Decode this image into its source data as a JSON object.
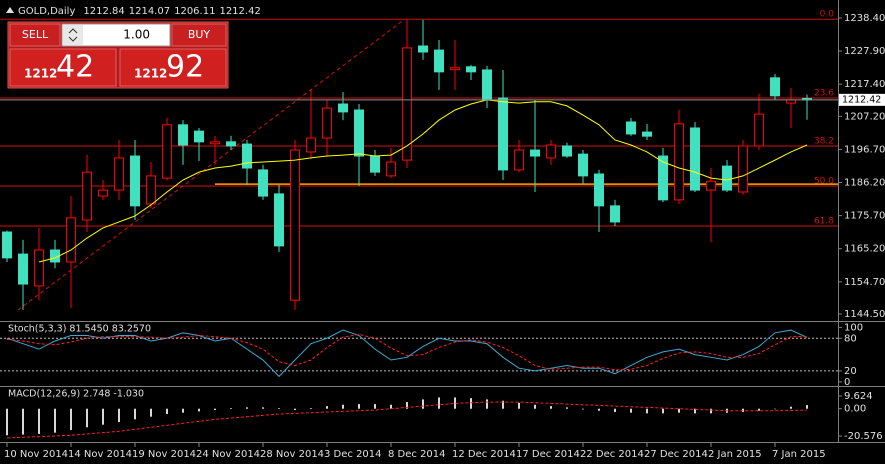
{
  "header": {
    "symbol": "GOLD,Daily"
  },
  "trade_panel": {
    "sell": "SELL",
    "buy": "BUY",
    "lots": "1.00",
    "bid_big": "1212",
    "bid_small": "42",
    "ask_big": "1212",
    "ask_small": "92"
  },
  "chart_data": [
    {
      "type": "candlestick",
      "categories": [
        "10 Nov 2014",
        null,
        null,
        null,
        "14 Nov 2014",
        null,
        null,
        null,
        "19 Nov 2014",
        null,
        null,
        null,
        "24 Nov 2014",
        null,
        null,
        null,
        "28 Nov 2014",
        null,
        null,
        null,
        "3 Dec 2014",
        null,
        null,
        null,
        "8 Dec 2014",
        null,
        null,
        null,
        "12 Dec 2014",
        null,
        null,
        null,
        "17 Dec 2014",
        null,
        null,
        null,
        "22 Dec 2014",
        null,
        null,
        null,
        "27 Dec 2014",
        null,
        null,
        null,
        "2 Jan 2015",
        null,
        null,
        null,
        "7 Jan 2015",
        null,
        null
      ],
      "open": [
        1170.5,
        1163.5,
        1153.4,
        1164.8,
        1161,
        1174.3,
        1181.9,
        1183.8,
        1194.6,
        1179.4,
        1187.6,
        1204.5,
        1202.5,
        1198.5,
        1199.1,
        1198.4,
        1190.2,
        1182.6,
        1148.9,
        1195.9,
        1200.3,
        1211.1,
        1209.2,
        1194.6,
        1188.3,
        1193.3,
        1229.5,
        1228.2,
        1222,
        1222.9,
        1221.9,
        1213,
        1190.2,
        1196.5,
        1194,
        1197.8,
        1195.2,
        1188.9,
        1178.8,
        1205.4,
        1202.2,
        1194.6,
        1180.7,
        1203.5,
        1183.8,
        1191.4,
        1183.2,
        1197.8,
        1219.4,
        1211.4,
        1212.84
      ],
      "high": [
        1171,
        1168,
        1171.8,
        1168,
        1181.9,
        1195,
        1187,
        1199.7,
        1199.7,
        1192.7,
        1206.7,
        1206,
        1203.5,
        1201,
        1201,
        1199.7,
        1191.8,
        1185.4,
        1199.7,
        1215.6,
        1212.4,
        1214.9,
        1211.1,
        1196.5,
        1197.2,
        1237.8,
        1237.8,
        1231.4,
        1231.4,
        1223.5,
        1223.2,
        1221.9,
        1199.7,
        1212.4,
        1199.7,
        1198.8,
        1196.5,
        1190.2,
        1180.7,
        1206.7,
        1204.8,
        1197.2,
        1209.2,
        1205.4,
        1190.8,
        1193.3,
        1199.7,
        1214.3,
        1220.6,
        1216.2,
        1214.07
      ],
      "low": [
        1161,
        1145.8,
        1148.9,
        1159,
        1146.4,
        1170.5,
        1180.7,
        1180.7,
        1174.3,
        1178,
        1186.9,
        1191.8,
        1193,
        1191.8,
        1196.5,
        1185.4,
        1180.7,
        1164.2,
        1145.8,
        1194,
        1194.6,
        1206,
        1185.1,
        1188.3,
        1187.6,
        1190.8,
        1225.1,
        1215.6,
        1215.6,
        1218.7,
        1209.8,
        1187,
        1189.5,
        1183.2,
        1191.8,
        1194,
        1185.7,
        1170.5,
        1172.4,
        1201,
        1199.7,
        1180,
        1179.4,
        1183.2,
        1167.3,
        1183.2,
        1182.3,
        1196.5,
        1212.4,
        1203.5,
        1206.11
      ],
      "close": [
        1162.3,
        1154,
        1164.8,
        1161,
        1175,
        1189.5,
        1183.8,
        1194,
        1178.8,
        1188.3,
        1204.5,
        1198.1,
        1199.1,
        1199.1,
        1197.8,
        1190.8,
        1181.9,
        1166.1,
        1196.5,
        1200.3,
        1209.8,
        1208.6,
        1194.6,
        1189.5,
        1192.7,
        1228.9,
        1227.6,
        1221.3,
        1222.6,
        1221.3,
        1212.4,
        1190.2,
        1196.5,
        1194.6,
        1198.1,
        1194.6,
        1188.3,
        1178.8,
        1173.7,
        1201.6,
        1200.9,
        1180.7,
        1204.8,
        1183.8,
        1186.6,
        1183.8,
        1197.8,
        1207.9,
        1213.7,
        1212.4,
        1212.42
      ],
      "bull_color": "#ff0000",
      "bear_color": "#40e0c0",
      "overlay": {
        "color": "#ffff00",
        "values": [
          null,
          null,
          1161.0,
          1162.3,
          1164.8,
          1168.6,
          1171.8,
          1173.7,
          1175.6,
          1179.1,
          1183.2,
          1187.0,
          1189.5,
          1190.8,
          1191.4,
          1192.4,
          1192.7,
          1193.0,
          1193.3,
          1194.0,
          1194.6,
          1194.9,
          1195.3,
          1194.6,
          1194.9,
          1197.8,
          1201.6,
          1206.0,
          1209.2,
          1211.1,
          1212.4,
          1211.8,
          1211.4,
          1211.8,
          1211.8,
          1210.5,
          1207.6,
          1204.5,
          1199.7,
          1198.1,
          1195.9,
          1192.7,
          1190.8,
          1189.5,
          1187.6,
          1187.0,
          1188.3,
          1190.8,
          1193.3,
          1195.9,
          1198.1
        ]
      },
      "fib_levels": [
        {
          "label": "0.0",
          "value": 1238.0
        },
        {
          "label": "23.6",
          "value": 1213.0
        },
        {
          "label": "38.2",
          "value": 1197.8
        },
        {
          "label": "50.0",
          "value": 1185.1
        },
        {
          "label": "61.8",
          "value": 1172.4
        }
      ],
      "fib_color": "#d01010",
      "hline": {
        "value": 1185.7,
        "color": "#ffa500"
      },
      "ylim": [
        1142.6,
        1242.5
      ],
      "yticks": [
        {
          "value": 1238.4,
          "label": "1238.40"
        },
        {
          "value": 1227.9,
          "label": "1227.90"
        },
        {
          "value": 1217.4,
          "label": "1217.40"
        },
        {
          "value": 1207.2,
          "label": "1207.20"
        },
        {
          "value": 1196.7,
          "label": "1196.70"
        },
        {
          "value": 1186.2,
          "label": "1186.20"
        },
        {
          "value": 1175.7,
          "label": "1175.70"
        },
        {
          "value": 1165.2,
          "label": "1165.20"
        },
        {
          "value": 1154.7,
          "label": "1154.70"
        },
        {
          "value": 1144.5,
          "label": "1144.50"
        }
      ],
      "grid": false
    },
    {
      "type": "line",
      "title": "Stoch(5,3,3) 81.5450 83.2570",
      "series": [
        {
          "color": "#3fa8d0",
          "dash": false,
          "values": [
            80,
            70,
            60,
            75,
            85,
            85,
            80,
            85,
            85,
            75,
            80,
            90,
            85,
            75,
            80,
            60,
            40,
            10,
            40,
            70,
            80,
            95,
            85,
            60,
            40,
            45,
            65,
            80,
            75,
            75,
            70,
            45,
            25,
            20,
            25,
            30,
            25,
            25,
            15,
            30,
            45,
            55,
            60,
            50,
            45,
            40,
            50,
            65,
            90,
            95,
            81.545
          ]
        },
        {
          "color": "#ff2020",
          "dash": true,
          "values": [
            78,
            75,
            70,
            68,
            73,
            80,
            83,
            83,
            83,
            82,
            80,
            82,
            85,
            83,
            80,
            72,
            60,
            37,
            30,
            40,
            63,
            82,
            87,
            80,
            62,
            48,
            50,
            63,
            73,
            77,
            73,
            63,
            48,
            30,
            23,
            25,
            27,
            27,
            22,
            23,
            30,
            43,
            53,
            55,
            52,
            45,
            45,
            52,
            68,
            83,
            83.257
          ]
        }
      ],
      "levels": [
        80,
        20
      ],
      "ylim": [
        -4,
        108
      ],
      "yticks": [
        100,
        80,
        20,
        0
      ],
      "grid": false
    },
    {
      "type": "bar",
      "title": "MACD(12,26,9) 2.748 -1.030",
      "color": "#d8d8d8",
      "values": [
        -20,
        -19.5,
        -19,
        -18,
        -16,
        -14,
        -12,
        -10,
        -8,
        -6,
        -4,
        -3,
        -2,
        -1,
        0.5,
        1,
        1,
        0.5,
        -1,
        0.5,
        2,
        3,
        3.5,
        3.5,
        3,
        5,
        7,
        8.5,
        8.5,
        8,
        7,
        6,
        4.5,
        3,
        2,
        1,
        -0.5,
        -1.5,
        -2.5,
        -3,
        -3.5,
        -3.5,
        -3,
        -3.5,
        -3.5,
        -3,
        -2.5,
        -1.5,
        0,
        1.5,
        2.748
      ],
      "signal": {
        "color": "#ff2020",
        "dash": true,
        "values": [
          -22,
          -21.5,
          -21,
          -20.5,
          -20,
          -19,
          -18,
          -17,
          -15.5,
          -14,
          -12.5,
          -11,
          -9.5,
          -8,
          -7,
          -6,
          -5,
          -4,
          -3.5,
          -3,
          -2.5,
          -2,
          -1.5,
          -1,
          0,
          1,
          2,
          3,
          4,
          4.5,
          5,
          5,
          5,
          4.5,
          4,
          3.5,
          3,
          2.5,
          2,
          1.5,
          1,
          0.5,
          0,
          -0.5,
          -1,
          -1.5,
          -1.5,
          -1.5,
          -1.5,
          -1.3,
          -1.03
        ]
      },
      "ylim": [
        -24.3,
        15.6
      ],
      "yticks": [
        9.624,
        {
          "value": 0,
          "label": "0.00"
        },
        -20.576
      ],
      "grid": false
    }
  ]
}
